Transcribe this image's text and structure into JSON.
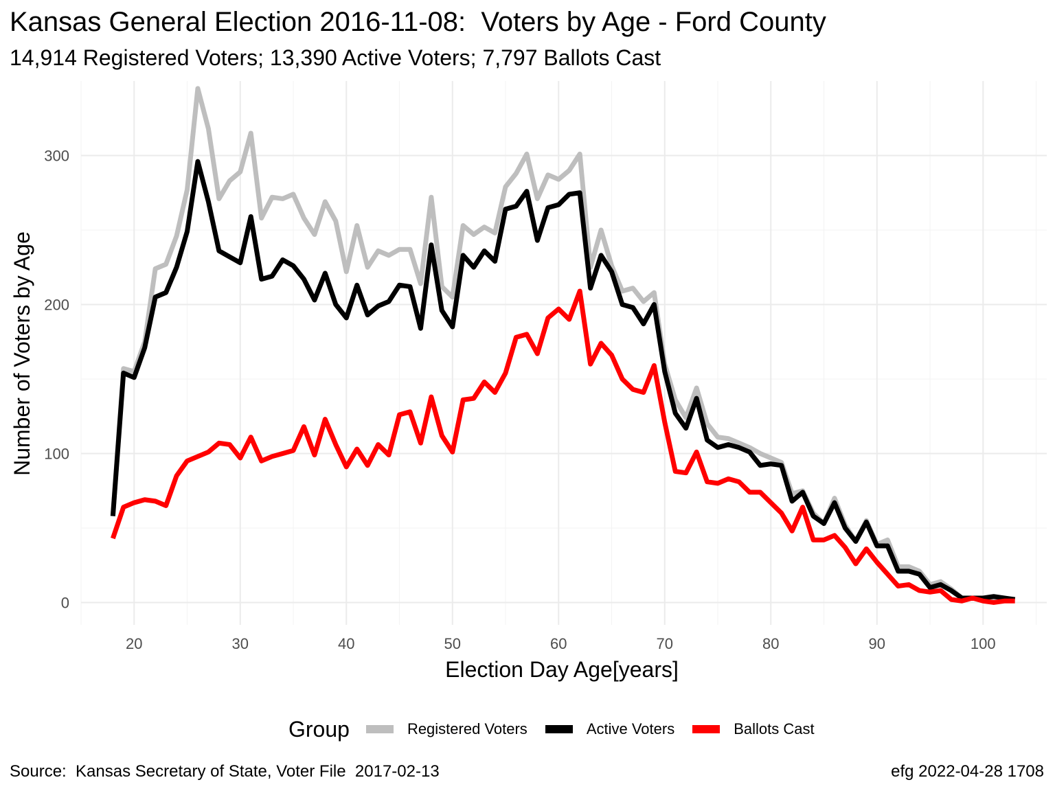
{
  "chart_data": {
    "type": "line",
    "title": "Kansas General Election 2016-11-08:  Voters by Age - Ford County",
    "subtitle": "14,914 Registered Voters; 13,390 Active Voters; 7,797 Ballots Cast",
    "xlabel": "Election Day Age[years]",
    "ylabel": "Number of Voters by Age",
    "xlim": [
      15,
      106
    ],
    "ylim": [
      -15,
      350
    ],
    "x_ticks": [
      20,
      30,
      40,
      50,
      60,
      70,
      80,
      90,
      100
    ],
    "y_ticks": [
      0,
      100,
      200,
      300
    ],
    "grid": true,
    "legend_title": "Group",
    "legend_position": "bottom",
    "x": [
      18,
      19,
      20,
      21,
      22,
      23,
      24,
      25,
      26,
      27,
      28,
      29,
      30,
      31,
      32,
      33,
      34,
      35,
      36,
      37,
      38,
      39,
      40,
      41,
      42,
      43,
      44,
      45,
      46,
      47,
      48,
      49,
      50,
      51,
      52,
      53,
      54,
      55,
      56,
      57,
      58,
      59,
      60,
      61,
      62,
      63,
      64,
      65,
      66,
      67,
      68,
      69,
      70,
      71,
      72,
      73,
      74,
      75,
      76,
      77,
      78,
      79,
      80,
      81,
      82,
      83,
      84,
      85,
      86,
      87,
      88,
      89,
      90,
      91,
      92,
      93,
      94,
      95,
      96,
      97,
      98,
      99,
      100,
      101,
      102,
      103
    ],
    "series": [
      {
        "name": "Registered Voters",
        "color": "#BEBEBE",
        "values": [
          58,
          157,
          155,
          175,
          224,
          227,
          246,
          277,
          345,
          318,
          271,
          283,
          289,
          315,
          258,
          272,
          271,
          274,
          258,
          247,
          269,
          256,
          222,
          253,
          225,
          236,
          233,
          237,
          237,
          214,
          272,
          212,
          205,
          253,
          247,
          252,
          248,
          279,
          288,
          301,
          271,
          287,
          284,
          290,
          301,
          225,
          250,
          226,
          209,
          211,
          202,
          208,
          160,
          136,
          124,
          144,
          120,
          111,
          110,
          107,
          104,
          100,
          97,
          94,
          73,
          75,
          60,
          53,
          70,
          52,
          41,
          55,
          39,
          42,
          24,
          24,
          21,
          12,
          14,
          9,
          3,
          3,
          3,
          3,
          2,
          2
        ]
      },
      {
        "name": "Active Voters",
        "color": "#000000",
        "values": [
          58,
          154,
          151,
          171,
          205,
          208,
          225,
          249,
          296,
          269,
          236,
          232,
          228,
          259,
          217,
          219,
          230,
          226,
          217,
          203,
          221,
          200,
          191,
          213,
          193,
          199,
          202,
          213,
          212,
          184,
          240,
          196,
          185,
          233,
          225,
          236,
          229,
          264,
          266,
          276,
          243,
          265,
          267,
          274,
          275,
          211,
          233,
          222,
          200,
          198,
          187,
          200,
          155,
          127,
          117,
          137,
          109,
          104,
          106,
          104,
          101,
          92,
          93,
          92,
          68,
          74,
          58,
          53,
          67,
          50,
          41,
          54,
          38,
          38,
          21,
          21,
          19,
          10,
          12,
          8,
          3,
          3,
          3,
          4,
          3,
          2
        ]
      },
      {
        "name": "Ballots Cast",
        "color": "#FF0000",
        "values": [
          43,
          64,
          67,
          69,
          68,
          65,
          85,
          95,
          98,
          101,
          107,
          106,
          97,
          111,
          95,
          98,
          100,
          102,
          118,
          99,
          123,
          106,
          91,
          103,
          92,
          106,
          99,
          126,
          128,
          107,
          138,
          112,
          101,
          136,
          137,
          148,
          141,
          154,
          178,
          180,
          167,
          191,
          197,
          190,
          209,
          160,
          174,
          166,
          150,
          143,
          141,
          159,
          121,
          88,
          87,
          101,
          81,
          80,
          83,
          81,
          74,
          74,
          67,
          60,
          48,
          64,
          42,
          42,
          45,
          37,
          26,
          36,
          27,
          19,
          11,
          12,
          8,
          7,
          8,
          2,
          1,
          3,
          1,
          0,
          1,
          1
        ]
      }
    ]
  },
  "caption": {
    "source": "Source:  Kansas Secretary of State, Voter File  2017-02-13",
    "credit": "efg 2022-04-28 1708"
  }
}
